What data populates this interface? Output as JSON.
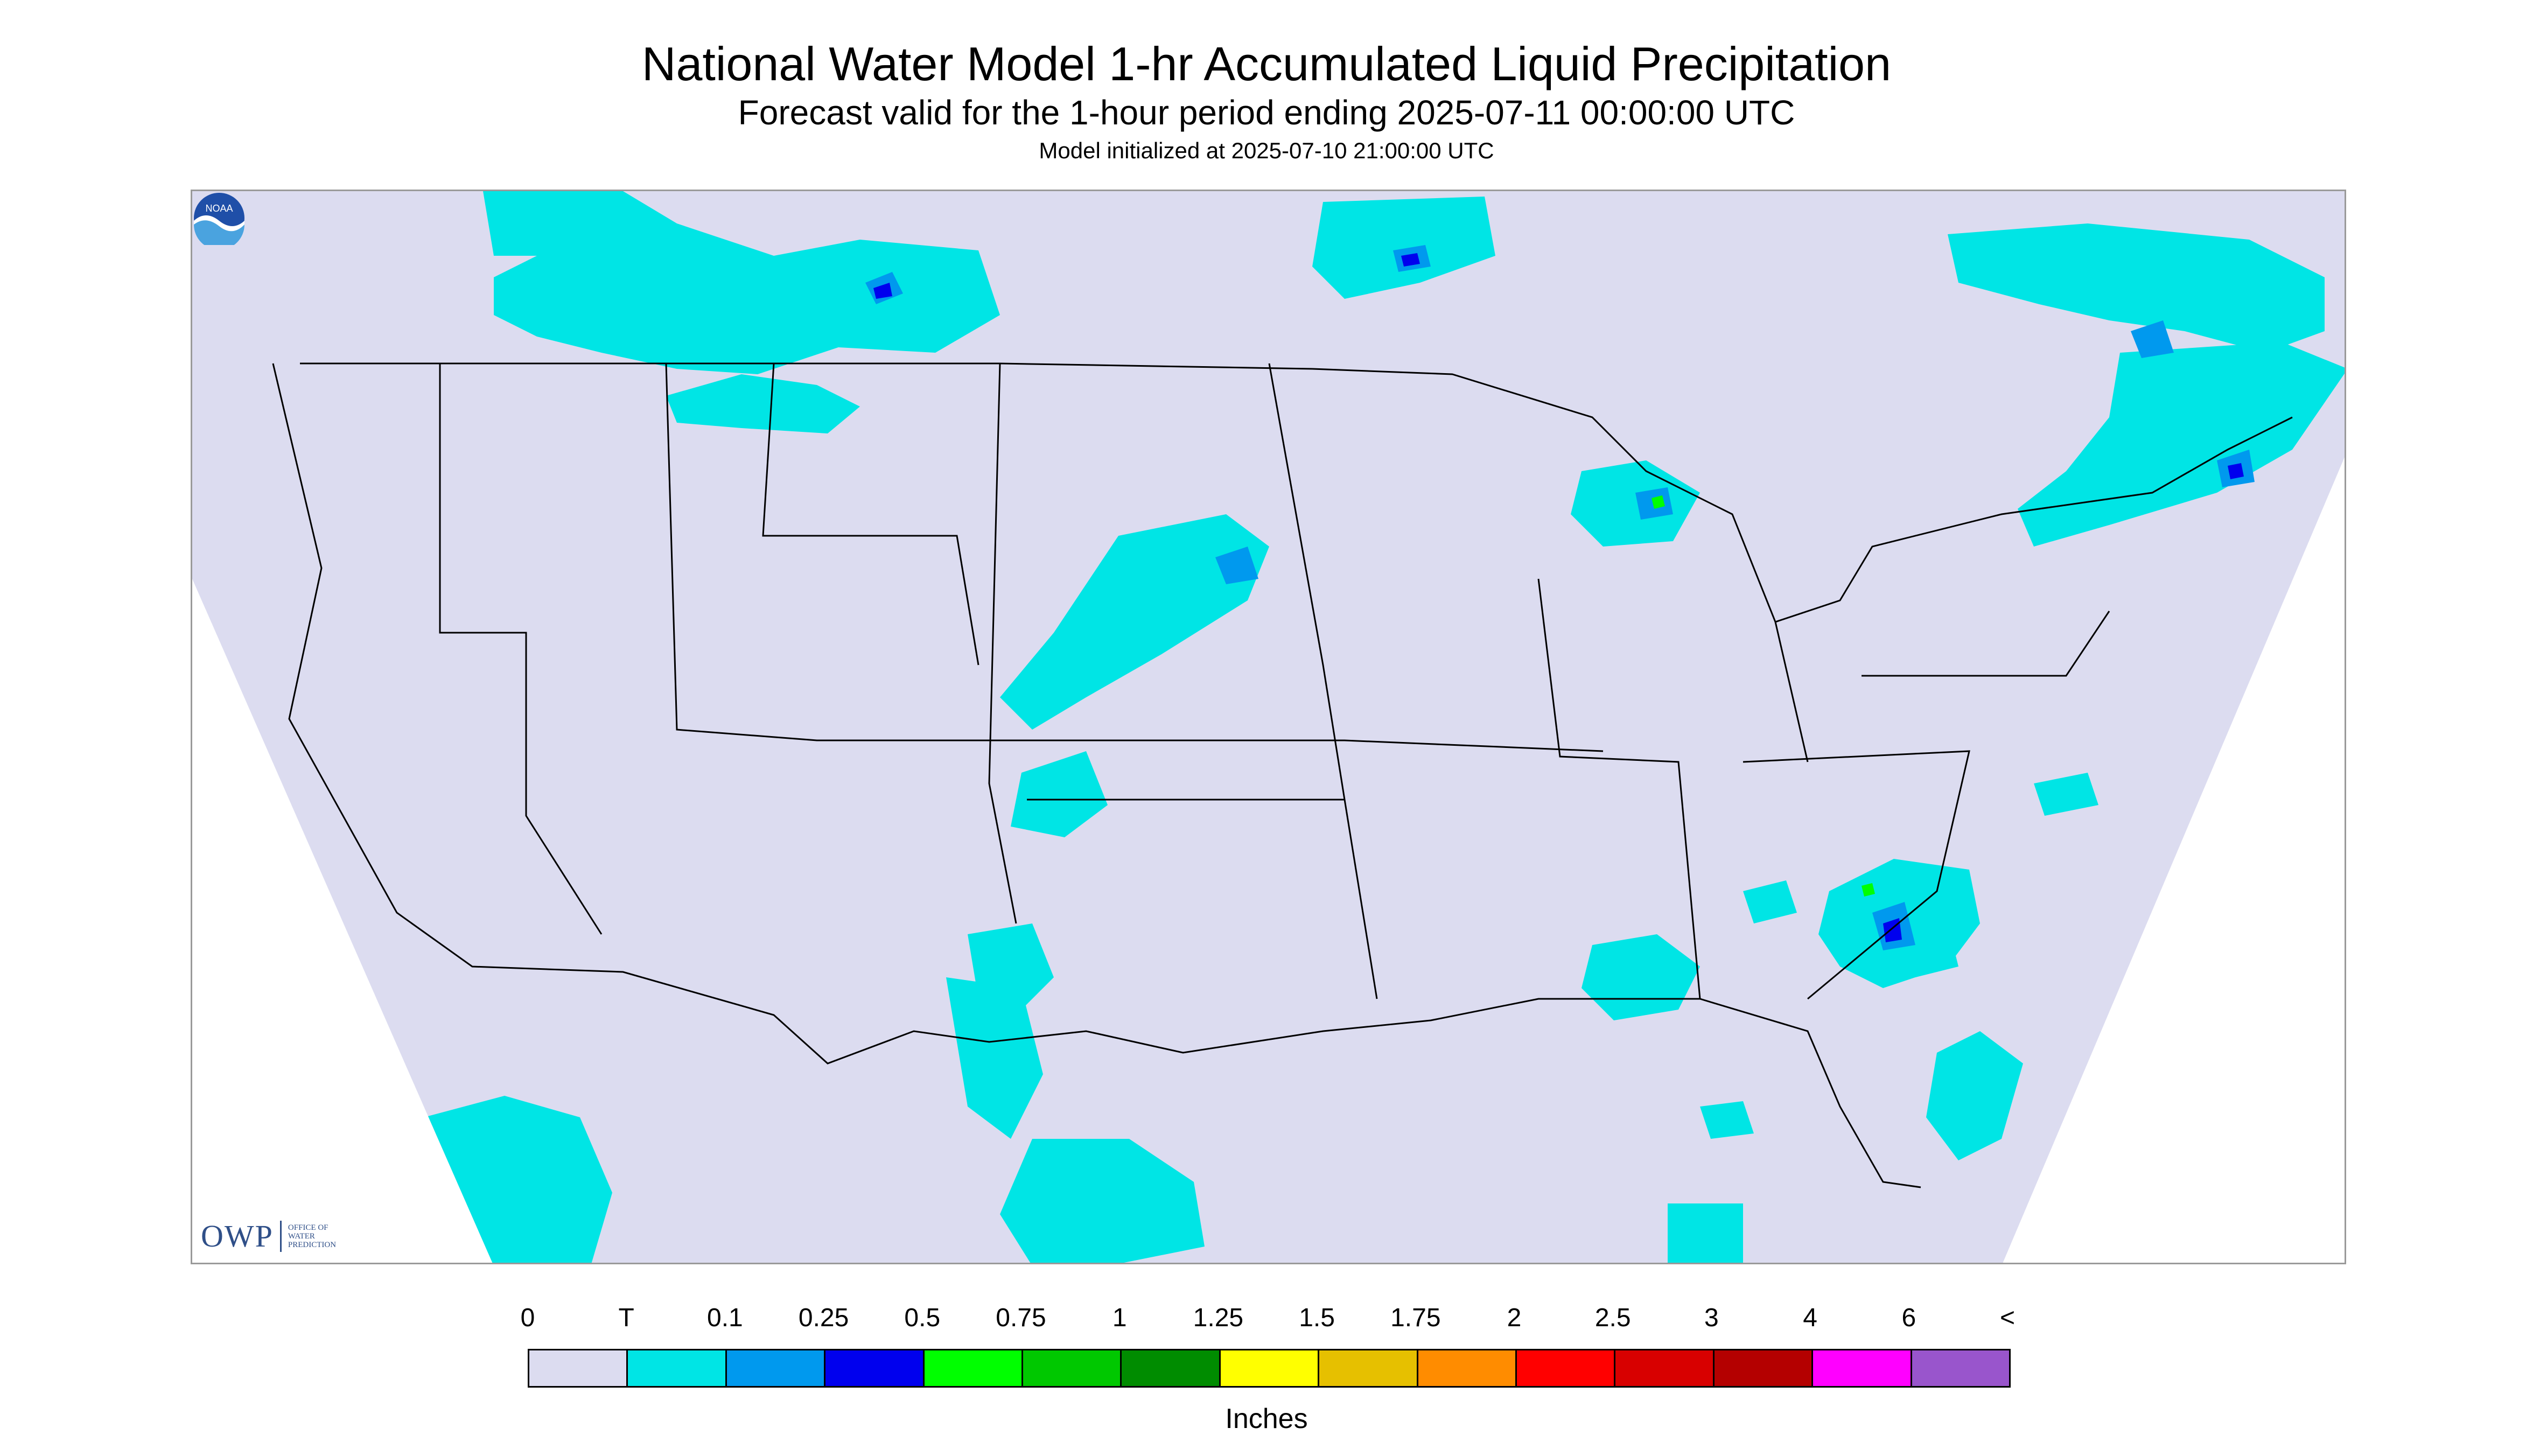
{
  "title": "National Water Model 1-hr Accumulated Liquid Precipitation",
  "subtitle": "Forecast valid for the 1-hour period ending 2025-07-11 00:00:00 UTC",
  "init_text": "Model initialized at 2025-07-10 21:00:00 UTC",
  "logo_owp": {
    "main": "OWP",
    "sub": "OFFICE OF\nWATER\nPREDICTION"
  },
  "logo_noaa": "NOAA",
  "legend": {
    "labels": [
      "0",
      "T",
      "0.1",
      "0.25",
      "0.5",
      "0.75",
      "1",
      "1.25",
      "1.5",
      "1.75",
      "2",
      "2.5",
      "3",
      "4",
      "6",
      "<"
    ],
    "colors": [
      "#dcdcf0",
      "#00e5e5",
      "#0099ee",
      "#0000ee",
      "#00ff00",
      "#00c800",
      "#008c00",
      "#ffff00",
      "#e6c000",
      "#ff8c00",
      "#ff0000",
      "#d80000",
      "#b40000",
      "#ff00ff",
      "#9955cc"
    ],
    "units": "Inches"
  },
  "colors": {
    "background_no_precip": "#dcdcf0",
    "trace": "#00e5e5",
    "light": "#0099ee",
    "moderate": "#0000ee",
    "heavy": "#00ff00",
    "boundary_lines": "#000000"
  }
}
